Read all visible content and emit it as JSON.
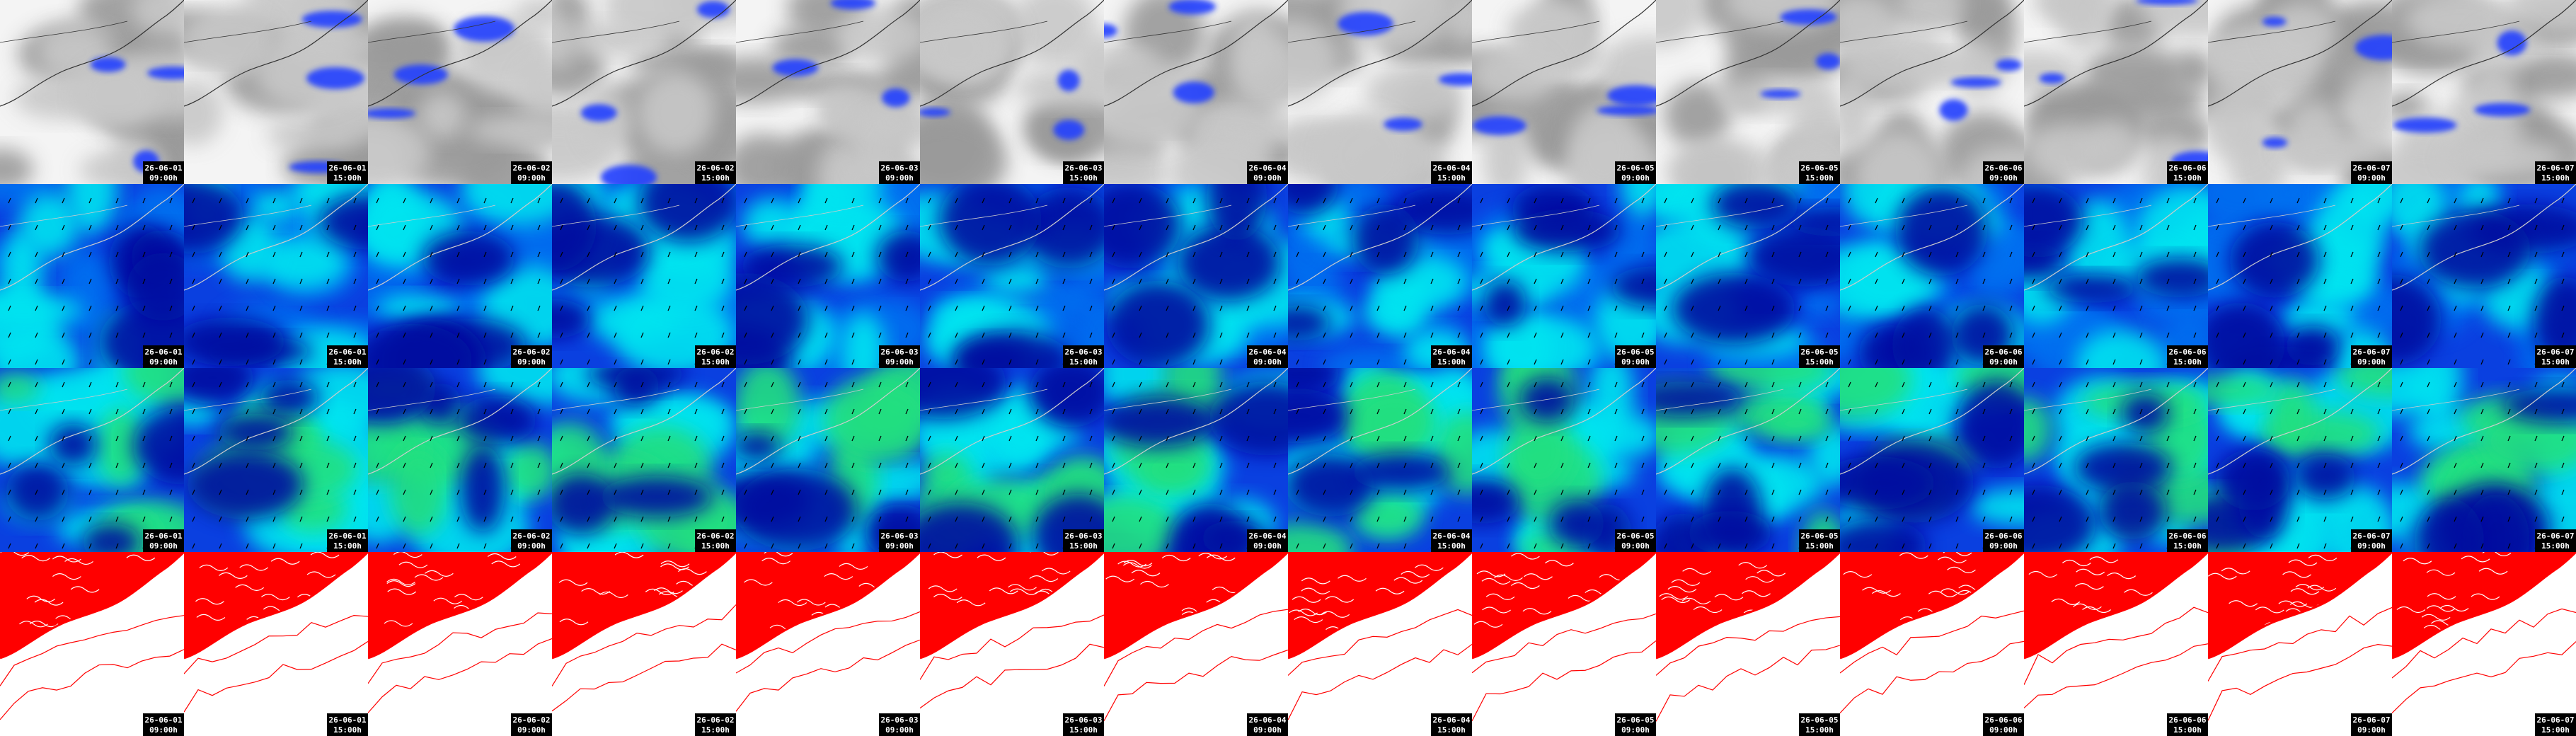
{
  "columns": [
    {
      "date": "26-06-01",
      "time": "09:00h"
    },
    {
      "date": "26-06-01",
      "time": "15:00h"
    },
    {
      "date": "26-06-02",
      "time": "09:00h"
    },
    {
      "date": "26-06-02",
      "time": "15:00h"
    },
    {
      "date": "26-06-03",
      "time": "09:00h"
    },
    {
      "date": "26-06-03",
      "time": "15:00h"
    },
    {
      "date": "26-06-04",
      "time": "09:00h"
    },
    {
      "date": "26-06-04",
      "time": "15:00h"
    },
    {
      "date": "26-06-05",
      "time": "09:00h"
    },
    {
      "date": "26-06-05",
      "time": "15:00h"
    },
    {
      "date": "26-06-06",
      "time": "09:00h"
    },
    {
      "date": "26-06-06",
      "time": "15:00h"
    },
    {
      "date": "26-06-07",
      "time": "09:00h"
    },
    {
      "date": "26-06-07",
      "time": "15:00h"
    }
  ]
}
